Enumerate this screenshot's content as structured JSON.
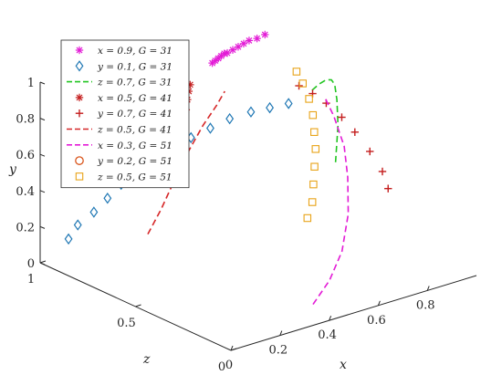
{
  "chart_data": {
    "type": "line",
    "projection": "3d",
    "axes": {
      "x": {
        "label": "x",
        "range": [
          0,
          1
        ],
        "ticks": [
          "0",
          "0.2",
          "0.4",
          "0.6",
          "0.8"
        ]
      },
      "y": {
        "label": "y",
        "range": [
          0,
          1
        ],
        "ticks": [
          "0",
          "0.2",
          "0.4",
          "0.6",
          "0.8",
          "1"
        ]
      },
      "z": {
        "label": "z",
        "range": [
          0,
          1
        ],
        "ticks": [
          "0",
          "0.5",
          "1"
        ]
      }
    },
    "grid": false,
    "legend_position": "top-left",
    "series": [
      {
        "name": "x = 0.9, G = 31",
        "color": "#E31BD6",
        "marker": "asterisk",
        "line": "none",
        "points": [
          [
            0.9,
            0.9,
            0.98
          ],
          [
            0.86,
            0.9,
            0.97
          ],
          [
            0.82,
            0.91,
            0.96
          ],
          [
            0.79,
            0.91,
            0.95
          ],
          [
            0.76,
            0.91,
            0.94
          ],
          [
            0.73,
            0.91,
            0.93
          ],
          [
            0.7,
            0.91,
            0.92
          ],
          [
            0.68,
            0.92,
            0.91
          ],
          [
            0.66,
            0.92,
            0.9
          ],
          [
            0.64,
            0.92,
            0.89
          ],
          [
            0.62,
            0.92,
            0.88
          ],
          [
            0.6,
            0.92,
            0.87
          ]
        ]
      },
      {
        "name": "y = 0.1, G = 31",
        "color": "#1F77B4",
        "marker": "diamond",
        "line": "none",
        "points": [
          [
            0.1,
            0.1,
            0.98
          ],
          [
            0.13,
            0.17,
            0.97
          ],
          [
            0.18,
            0.23,
            0.95
          ],
          [
            0.22,
            0.3,
            0.93
          ],
          [
            0.26,
            0.37,
            0.91
          ],
          [
            0.3,
            0.44,
            0.88
          ],
          [
            0.34,
            0.51,
            0.84
          ],
          [
            0.38,
            0.58,
            0.8
          ],
          [
            0.42,
            0.64,
            0.75
          ],
          [
            0.46,
            0.7,
            0.7
          ],
          [
            0.5,
            0.76,
            0.65
          ],
          [
            0.54,
            0.81,
            0.59
          ],
          [
            0.57,
            0.85,
            0.53
          ],
          [
            0.6,
            0.89,
            0.47
          ]
        ]
      },
      {
        "name": "z = 0.7, G = 31",
        "color": "#21C521",
        "marker": "none",
        "line": "dashed",
        "points": [
          [
            0.97,
            0.3,
            0.7
          ],
          [
            0.98,
            0.5,
            0.7
          ],
          [
            0.96,
            0.66,
            0.68
          ],
          [
            0.92,
            0.78,
            0.64
          ],
          [
            0.86,
            0.86,
            0.58
          ],
          [
            0.8,
            0.91,
            0.53
          ],
          [
            0.74,
            0.93,
            0.49
          ],
          [
            0.68,
            0.94,
            0.45
          ]
        ]
      },
      {
        "name": "x = 0.5, G = 41",
        "color": "#C41E1E",
        "marker": "asterisk",
        "line": "none",
        "points": [
          [
            0.5,
            0.42,
            0.9
          ],
          [
            0.5,
            0.5,
            0.9
          ],
          [
            0.49,
            0.58,
            0.88
          ],
          [
            0.48,
            0.66,
            0.86
          ],
          [
            0.47,
            0.73,
            0.84
          ],
          [
            0.46,
            0.8,
            0.82
          ],
          [
            0.45,
            0.86,
            0.8
          ],
          [
            0.44,
            0.91,
            0.78
          ]
        ]
      },
      {
        "name": "y = 0.7, G = 41",
        "color": "#C41E1E",
        "marker": "plus",
        "line": "none",
        "points": [
          [
            0.92,
            0.34,
            0.36
          ],
          [
            0.92,
            0.42,
            0.39
          ],
          [
            0.9,
            0.52,
            0.43
          ],
          [
            0.87,
            0.62,
            0.47
          ],
          [
            0.84,
            0.7,
            0.5
          ],
          [
            0.8,
            0.78,
            0.53
          ],
          [
            0.76,
            0.84,
            0.55
          ],
          [
            0.72,
            0.89,
            0.57
          ]
        ]
      },
      {
        "name": "z = 0.5, G = 41",
        "color": "#D62728",
        "marker": "none",
        "line": "dashed",
        "points": [
          [
            0.05,
            0.38,
            0.5
          ],
          [
            0.12,
            0.48,
            0.52
          ],
          [
            0.2,
            0.6,
            0.55
          ],
          [
            0.28,
            0.71,
            0.58
          ],
          [
            0.36,
            0.8,
            0.61
          ],
          [
            0.43,
            0.87,
            0.63
          ],
          [
            0.48,
            0.92,
            0.65
          ]
        ]
      },
      {
        "name": "x = 0.3, G = 51",
        "color": "#E31BD6",
        "marker": "none",
        "line": "dashed",
        "points": [
          [
            0.35,
            0.1,
            0.02
          ],
          [
            0.44,
            0.18,
            0.05
          ],
          [
            0.53,
            0.28,
            0.1
          ],
          [
            0.61,
            0.42,
            0.17
          ],
          [
            0.67,
            0.56,
            0.25
          ],
          [
            0.71,
            0.68,
            0.32
          ],
          [
            0.73,
            0.8,
            0.4
          ],
          [
            0.74,
            0.87,
            0.46
          ]
        ]
      },
      {
        "name": "y = 0.2, G = 51",
        "color": "#D95319",
        "marker": "circle",
        "line": "none",
        "points": [
          [
            0.02,
            0.58,
            0.78
          ],
          [
            0.04,
            0.62,
            0.79
          ],
          [
            0.06,
            0.66,
            0.8
          ],
          [
            0.09,
            0.7,
            0.8
          ],
          [
            0.12,
            0.73,
            0.8
          ],
          [
            0.15,
            0.76,
            0.8
          ],
          [
            0.18,
            0.79,
            0.8
          ],
          [
            0.22,
            0.82,
            0.8
          ],
          [
            0.26,
            0.85,
            0.79
          ],
          [
            0.3,
            0.87,
            0.78
          ],
          [
            0.34,
            0.89,
            0.77
          ]
        ]
      },
      {
        "name": "z = 0.5, G = 51",
        "color": "#E8A317",
        "marker": "square",
        "line": "none",
        "points": [
          [
            0.7,
            0.2,
            0.5
          ],
          [
            0.72,
            0.28,
            0.5
          ],
          [
            0.74,
            0.36,
            0.52
          ],
          [
            0.76,
            0.44,
            0.54
          ],
          [
            0.78,
            0.52,
            0.56
          ],
          [
            0.79,
            0.6,
            0.58
          ],
          [
            0.8,
            0.68,
            0.6
          ],
          [
            0.8,
            0.76,
            0.62
          ],
          [
            0.79,
            0.84,
            0.64
          ],
          [
            0.78,
            0.9,
            0.66
          ]
        ]
      }
    ]
  }
}
